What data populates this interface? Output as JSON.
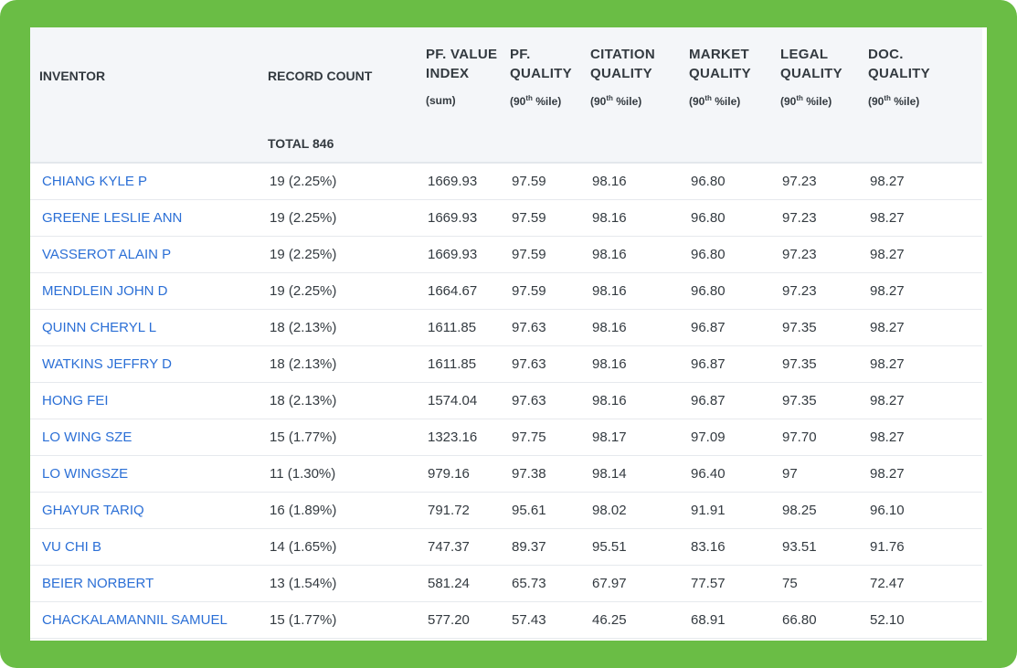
{
  "headers": {
    "inventor": "INVENTOR",
    "record_count": "RECORD COUNT",
    "pf_value_index": {
      "line1": "PF. VALUE",
      "line2": "INDEX",
      "sub": "(sum)"
    },
    "pf_quality": {
      "line1": "PF.",
      "line2": "QUALITY",
      "sub_pre": "(90",
      "sub_sup": "th",
      "sub_post": " %ile)"
    },
    "citation_quality": {
      "line1": "CITATION",
      "line2": "QUALITY",
      "sub_pre": "(90",
      "sub_sup": "th",
      "sub_post": " %ile)"
    },
    "market_quality": {
      "line1": "MARKET",
      "line2": "QUALITY",
      "sub_pre": "(90",
      "sub_sup": "th",
      "sub_post": " %ile)"
    },
    "legal_quality": {
      "line1": "LEGAL",
      "line2": "QUALITY",
      "sub_pre": "(90",
      "sub_sup": "th",
      "sub_post": " %ile)"
    },
    "doc_quality": {
      "line1": "DOC.",
      "line2": "QUALITY",
      "sub_pre": "(90",
      "sub_sup": "th",
      "sub_post": " %ile)"
    }
  },
  "total_label": "TOTAL 846",
  "rows": [
    {
      "inventor": "CHIANG KYLE P",
      "record_count": "19 (2.25%)",
      "pf_value_index": "1669.93",
      "pf_quality": "97.59",
      "citation_quality": "98.16",
      "market_quality": "96.80",
      "legal_quality": "97.23",
      "doc_quality": "98.27"
    },
    {
      "inventor": "GREENE LESLIE ANN",
      "record_count": "19 (2.25%)",
      "pf_value_index": "1669.93",
      "pf_quality": "97.59",
      "citation_quality": "98.16",
      "market_quality": "96.80",
      "legal_quality": "97.23",
      "doc_quality": "98.27"
    },
    {
      "inventor": "VASSEROT ALAIN P",
      "record_count": "19 (2.25%)",
      "pf_value_index": "1669.93",
      "pf_quality": "97.59",
      "citation_quality": "98.16",
      "market_quality": "96.80",
      "legal_quality": "97.23",
      "doc_quality": "98.27"
    },
    {
      "inventor": "MENDLEIN JOHN D",
      "record_count": "19 (2.25%)",
      "pf_value_index": "1664.67",
      "pf_quality": "97.59",
      "citation_quality": "98.16",
      "market_quality": "96.80",
      "legal_quality": "97.23",
      "doc_quality": "98.27"
    },
    {
      "inventor": "QUINN CHERYL L",
      "record_count": "18 (2.13%)",
      "pf_value_index": "1611.85",
      "pf_quality": "97.63",
      "citation_quality": "98.16",
      "market_quality": "96.87",
      "legal_quality": "97.35",
      "doc_quality": "98.27"
    },
    {
      "inventor": "WATKINS JEFFRY D",
      "record_count": "18 (2.13%)",
      "pf_value_index": "1611.85",
      "pf_quality": "97.63",
      "citation_quality": "98.16",
      "market_quality": "96.87",
      "legal_quality": "97.35",
      "doc_quality": "98.27"
    },
    {
      "inventor": "HONG FEI",
      "record_count": "18 (2.13%)",
      "pf_value_index": "1574.04",
      "pf_quality": "97.63",
      "citation_quality": "98.16",
      "market_quality": "96.87",
      "legal_quality": "97.35",
      "doc_quality": "98.27"
    },
    {
      "inventor": "LO WING SZE",
      "record_count": "15 (1.77%)",
      "pf_value_index": "1323.16",
      "pf_quality": "97.75",
      "citation_quality": "98.17",
      "market_quality": "97.09",
      "legal_quality": "97.70",
      "doc_quality": "98.27"
    },
    {
      "inventor": "LO WINGSZE",
      "record_count": "11 (1.30%)",
      "pf_value_index": "979.16",
      "pf_quality": "97.38",
      "citation_quality": "98.14",
      "market_quality": "96.40",
      "legal_quality": "97",
      "doc_quality": "98.27"
    },
    {
      "inventor": "GHAYUR TARIQ",
      "record_count": "16 (1.89%)",
      "pf_value_index": "791.72",
      "pf_quality": "95.61",
      "citation_quality": "98.02",
      "market_quality": "91.91",
      "legal_quality": "98.25",
      "doc_quality": "96.10"
    },
    {
      "inventor": "VU CHI B",
      "record_count": "14 (1.65%)",
      "pf_value_index": "747.37",
      "pf_quality": "89.37",
      "citation_quality": "95.51",
      "market_quality": "83.16",
      "legal_quality": "93.51",
      "doc_quality": "91.76"
    },
    {
      "inventor": "BEIER NORBERT",
      "record_count": "13 (1.54%)",
      "pf_value_index": "581.24",
      "pf_quality": "65.73",
      "citation_quality": "67.97",
      "market_quality": "77.57",
      "legal_quality": "75",
      "doc_quality": "72.47"
    },
    {
      "inventor": "CHACKALAMANNIL SAMUEL",
      "record_count": "15 (1.77%)",
      "pf_value_index": "577.20",
      "pf_quality": "57.43",
      "citation_quality": "46.25",
      "market_quality": "68.91",
      "legal_quality": "66.80",
      "doc_quality": "52.10"
    }
  ],
  "colors": {
    "frame": "#6abd45",
    "header_bg": "#f4f6f9",
    "link": "#2b6fd6",
    "text": "#333a40"
  }
}
